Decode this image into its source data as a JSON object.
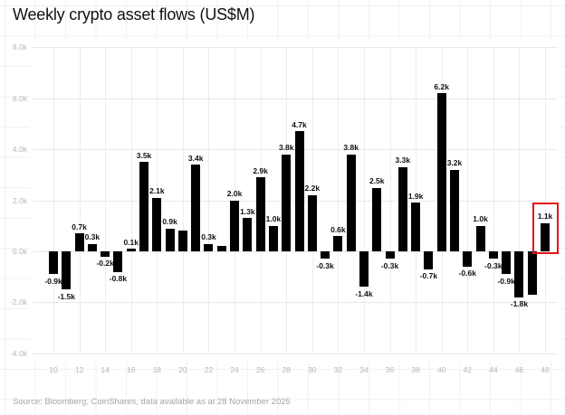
{
  "title": "Weekly crypto asset flows (US$M)",
  "source_note": "Source: Bloomberg, CoinShares, data available as at 28 November 2025",
  "colors": {
    "bar": "#000000",
    "highlight_box": "#e8121c",
    "axis_label": "#b5b5b5",
    "value_label": "#111111",
    "gridline": "#e8e8e8",
    "background": "#ffffff"
  },
  "chart_data": {
    "type": "bar",
    "title": "Weekly crypto asset flows (US$M)",
    "xlabel": "",
    "ylabel": "",
    "x_axis_labels": [
      "10",
      "12",
      "14",
      "16",
      "18",
      "20",
      "22",
      "24",
      "26",
      "28",
      "30",
      "32",
      "34",
      "36",
      "38",
      "40",
      "42",
      "44",
      "46",
      "48"
    ],
    "y_axis_labels": [
      "8.0k",
      "6.0k",
      "4.0k",
      "2.0k",
      "0.0k",
      "-2.0k",
      "-4.0k"
    ],
    "ylim_k": [
      -4,
      8
    ],
    "grid": true,
    "legend": "none",
    "highlight": {
      "week": 48,
      "color": "#e8121c"
    },
    "points": [
      {
        "week": 10,
        "value_k": -0.9,
        "label": "-0.9k"
      },
      {
        "week": 11,
        "value_k": -1.5,
        "label": "-1.5k"
      },
      {
        "week": 12,
        "value_k": 0.7,
        "label": "0.7k"
      },
      {
        "week": 13,
        "value_k": 0.3,
        "label": "0.3k"
      },
      {
        "week": 14,
        "value_k": -0.2,
        "label": "-0.2k"
      },
      {
        "week": 15,
        "value_k": -0.8,
        "label": "-0.8k"
      },
      {
        "week": 16,
        "value_k": 0.1,
        "label": "0.1k"
      },
      {
        "week": 17,
        "value_k": 3.5,
        "label": "3.5k"
      },
      {
        "week": 18,
        "value_k": 2.1,
        "label": "2.1k"
      },
      {
        "week": 19,
        "value_k": 0.9,
        "label": "0.9k"
      },
      {
        "week": 20,
        "value_k": 0.8,
        "label": ""
      },
      {
        "week": 21,
        "value_k": 3.4,
        "label": "3.4k"
      },
      {
        "week": 22,
        "value_k": 0.3,
        "label": "0.3k"
      },
      {
        "week": 23,
        "value_k": 0.2,
        "label": ""
      },
      {
        "week": 24,
        "value_k": 2.0,
        "label": "2.0k"
      },
      {
        "week": 25,
        "value_k": 1.3,
        "label": "1.3k"
      },
      {
        "week": 26,
        "value_k": 2.9,
        "label": "2.9k"
      },
      {
        "week": 27,
        "value_k": 1.0,
        "label": "1.0k"
      },
      {
        "week": 28,
        "value_k": 3.8,
        "label": "3.8k"
      },
      {
        "week": 29,
        "value_k": 4.7,
        "label": "4.7k"
      },
      {
        "week": 30,
        "value_k": 2.2,
        "label": "2.2k"
      },
      {
        "week": 31,
        "value_k": -0.3,
        "label": "-0.3k"
      },
      {
        "week": 32,
        "value_k": 0.6,
        "label": "0.6k"
      },
      {
        "week": 33,
        "value_k": 3.8,
        "label": "3.8k"
      },
      {
        "week": 34,
        "value_k": -1.4,
        "label": "-1.4k"
      },
      {
        "week": 35,
        "value_k": 2.5,
        "label": "2.5k"
      },
      {
        "week": 36,
        "value_k": -0.3,
        "label": "-0.3k"
      },
      {
        "week": 37,
        "value_k": 3.3,
        "label": "3.3k"
      },
      {
        "week": 38,
        "value_k": 1.9,
        "label": "1.9k"
      },
      {
        "week": 39,
        "value_k": -0.7,
        "label": "-0.7k"
      },
      {
        "week": 40,
        "value_k": 6.2,
        "label": "6.2k"
      },
      {
        "week": 41,
        "value_k": 3.2,
        "label": "3.2k"
      },
      {
        "week": 42,
        "value_k": -0.6,
        "label": "-0.6k"
      },
      {
        "week": 43,
        "value_k": 1.0,
        "label": "1.0k"
      },
      {
        "week": 44,
        "value_k": -0.3,
        "label": "-0.3k"
      },
      {
        "week": 45,
        "value_k": -0.9,
        "label": "-0.9k"
      },
      {
        "week": 46,
        "value_k": -1.8,
        "label": "-1.8k"
      },
      {
        "week": 47,
        "value_k": -1.7,
        "label": ""
      },
      {
        "week": 48,
        "value_k": 1.1,
        "label": "1.1k"
      }
    ]
  }
}
